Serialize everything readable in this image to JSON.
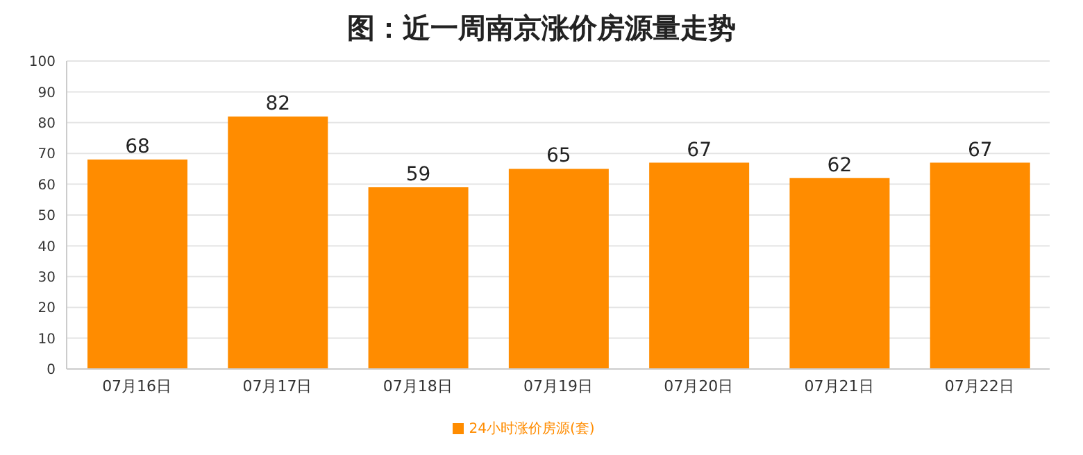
{
  "chart_data": {
    "type": "bar",
    "title": "图：近一周南京涨价房源量走势",
    "categories": [
      "07月16日",
      "07月17日",
      "07月18日",
      "07月19日",
      "07月20日",
      "07月21日",
      "07月22日"
    ],
    "series": [
      {
        "name": "24小时涨价房源(套)",
        "color": "#ff8c00",
        "values": [
          68,
          82,
          59,
          65,
          67,
          62,
          67
        ]
      }
    ],
    "ylim": [
      0,
      100
    ],
    "yticks": [
      0,
      10,
      20,
      30,
      40,
      50,
      60,
      70,
      80,
      90,
      100
    ],
    "grid": "y",
    "legend": "bottom",
    "data_labels": true
  }
}
